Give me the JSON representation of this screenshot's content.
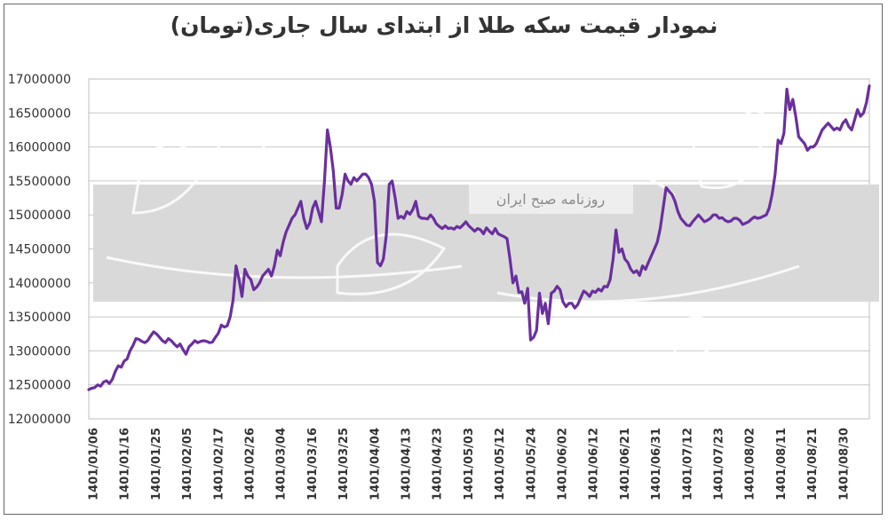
{
  "chart_data": {
    "type": "line",
    "title": "نمودار قیمت سکه طلا از ابتدای سال جاری(تومان)",
    "xlabel": "",
    "ylabel": "",
    "ylim": [
      12000000,
      17000000
    ],
    "yticks": [
      12000000,
      12500000,
      13000000,
      13500000,
      14000000,
      14500000,
      15000000,
      15500000,
      16000000,
      16500000,
      17000000
    ],
    "ytick_labels": [
      "12000000",
      "12500000",
      "13000000",
      "13500000",
      "14000000",
      "14500000",
      "15000000",
      "15500000",
      "16000000",
      "16500000",
      "17000000"
    ],
    "x_tick_labels": [
      "1401/01/06",
      "1401/01/16",
      "1401/01/25",
      "1401/02/05",
      "1401/02/17",
      "1401/02/26",
      "1401/03/04",
      "1401/03/16",
      "1401/03/25",
      "1401/04/04",
      "1401/04/13",
      "1401/04/23",
      "1401/05/03",
      "1401/05/12",
      "1401/05/24",
      "1401/06/02",
      "1401/06/12",
      "1401/06/21",
      "1401/06/31",
      "1401/07/12",
      "1401/07/23",
      "1401/08/02",
      "1401/08/11",
      "1401/08/21",
      "1401/08/30"
    ],
    "grid": true,
    "line_color": "#6a2f9e",
    "values": [
      12430000,
      12450000,
      12460000,
      12500000,
      12480000,
      12540000,
      12560000,
      12520000,
      12580000,
      12700000,
      12780000,
      12760000,
      12850000,
      12880000,
      13000000,
      13080000,
      13180000,
      13170000,
      13140000,
      13120000,
      13150000,
      13220000,
      13280000,
      13250000,
      13200000,
      13150000,
      13120000,
      13180000,
      13150000,
      13100000,
      13060000,
      13100000,
      13020000,
      12950000,
      13060000,
      13100000,
      13150000,
      13120000,
      13140000,
      13150000,
      13140000,
      13120000,
      13130000,
      13200000,
      13260000,
      13380000,
      13350000,
      13370000,
      13500000,
      13750000,
      14250000,
      14050000,
      13800000,
      14200000,
      14100000,
      14050000,
      13900000,
      13940000,
      14000000,
      14100000,
      14150000,
      14200000,
      14100000,
      14250000,
      14480000,
      14400000,
      14600000,
      14750000,
      14850000,
      14950000,
      15000000,
      15100000,
      15200000,
      14950000,
      14800000,
      14880000,
      15100000,
      15200000,
      15050000,
      14900000,
      15500000,
      16250000,
      16000000,
      15650000,
      15100000,
      15100000,
      15300000,
      15600000,
      15500000,
      15450000,
      15550000,
      15500000,
      15550000,
      15600000,
      15600000,
      15550000,
      15450000,
      15200000,
      14300000,
      14250000,
      14350000,
      14700000,
      15450000,
      15500000,
      15250000,
      14950000,
      14980000,
      14950000,
      15050000,
      15010000,
      15080000,
      15200000,
      14980000,
      14950000,
      14950000,
      14940000,
      15000000,
      14950000,
      14870000,
      14830000,
      14800000,
      14840000,
      14800000,
      14810000,
      14790000,
      14830000,
      14810000,
      14850000,
      14900000,
      14840000,
      14800000,
      14760000,
      14800000,
      14780000,
      14720000,
      14810000,
      14760000,
      14720000,
      14800000,
      14720000,
      14700000,
      14680000,
      14650000,
      14350000,
      14000000,
      14100000,
      13860000,
      13870000,
      13700000,
      13920000,
      13160000,
      13200000,
      13300000,
      13850000,
      13550000,
      13700000,
      13400000,
      13850000,
      13880000,
      13950000,
      13900000,
      13720000,
      13650000,
      13700000,
      13700000,
      13630000,
      13680000,
      13780000,
      13880000,
      13850000,
      13800000,
      13880000,
      13860000,
      13910000,
      13880000,
      13950000,
      13940000,
      14050000,
      14350000,
      14780000,
      14450000,
      14500000,
      14350000,
      14300000,
      14200000,
      14150000,
      14180000,
      14110000,
      14250000,
      14200000,
      14300000,
      14400000,
      14500000,
      14600000,
      14800000,
      15100000,
      15400000,
      15350000,
      15300000,
      15200000,
      15050000,
      14950000,
      14900000,
      14850000,
      14840000,
      14900000,
      14950000,
      15000000,
      14950000,
      14900000,
      14920000,
      14950000,
      15000000,
      15000000,
      14950000,
      14960000,
      14920000,
      14900000,
      14910000,
      14950000,
      14950000,
      14920000,
      14860000,
      14880000,
      14900000,
      14940000,
      14970000,
      14950000,
      14960000,
      14980000,
      15000000,
      15100000,
      15300000,
      15600000,
      16100000,
      16050000,
      16200000,
      16850000,
      16550000,
      16700000,
      16450000,
      16150000,
      16100000,
      16050000,
      15950000,
      16000000,
      16000000,
      16050000,
      16150000,
      16250000,
      16300000,
      16350000,
      16300000,
      16250000,
      16280000,
      16250000,
      16350000,
      16400000,
      16300000,
      16250000,
      16400000,
      16550000,
      16450000,
      16500000,
      16650000,
      16900000
    ]
  }
}
